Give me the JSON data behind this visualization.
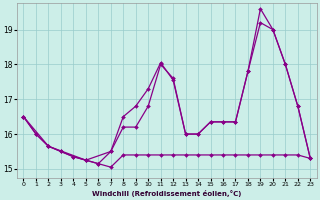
{
  "background_color": "#cceee8",
  "grid_color": "#99cccc",
  "line_color": "#880088",
  "xlabel": "Windchill (Refroidissement éolien,°C)",
  "xlim": [
    -0.5,
    23.5
  ],
  "ylim": [
    14.75,
    19.75
  ],
  "xticks": [
    0,
    1,
    2,
    3,
    4,
    5,
    6,
    7,
    8,
    9,
    10,
    11,
    12,
    13,
    14,
    15,
    16,
    17,
    18,
    19,
    20,
    21,
    22,
    23
  ],
  "yticks": [
    15,
    16,
    17,
    18,
    19
  ],
  "series": [
    {
      "x": [
        0,
        1,
        2,
        3,
        4,
        5,
        6,
        7,
        8,
        9,
        10,
        11,
        12,
        13,
        14,
        15,
        16,
        17,
        18,
        19,
        20,
        21,
        22,
        23
      ],
      "y": [
        16.5,
        16.0,
        15.65,
        15.5,
        15.35,
        15.25,
        15.15,
        15.05,
        15.4,
        15.4,
        15.4,
        15.4,
        15.4,
        15.4,
        15.4,
        15.4,
        15.4,
        15.4,
        15.4,
        15.4,
        15.4,
        15.4,
        15.4,
        15.3
      ]
    },
    {
      "x": [
        0,
        1,
        2,
        3,
        4,
        5,
        6,
        7,
        8,
        9,
        10,
        11,
        12,
        13,
        14,
        15,
        16,
        17,
        18,
        19,
        20,
        21,
        22,
        23
      ],
      "y": [
        16.5,
        16.0,
        15.65,
        15.5,
        15.35,
        15.25,
        15.15,
        15.5,
        16.2,
        16.2,
        16.8,
        18.0,
        17.6,
        16.0,
        16.0,
        16.35,
        16.35,
        16.35,
        17.8,
        19.2,
        19.0,
        18.0,
        16.8,
        15.3
      ]
    },
    {
      "x": [
        0,
        2,
        5,
        7,
        8,
        9,
        10,
        11,
        12,
        13,
        14,
        15,
        16,
        17,
        18,
        19,
        20,
        21,
        22,
        23
      ],
      "y": [
        16.5,
        15.65,
        15.25,
        15.5,
        16.5,
        16.8,
        17.3,
        18.05,
        17.55,
        16.0,
        16.0,
        16.35,
        16.35,
        16.35,
        17.8,
        19.6,
        19.0,
        18.0,
        16.8,
        15.3
      ]
    }
  ]
}
